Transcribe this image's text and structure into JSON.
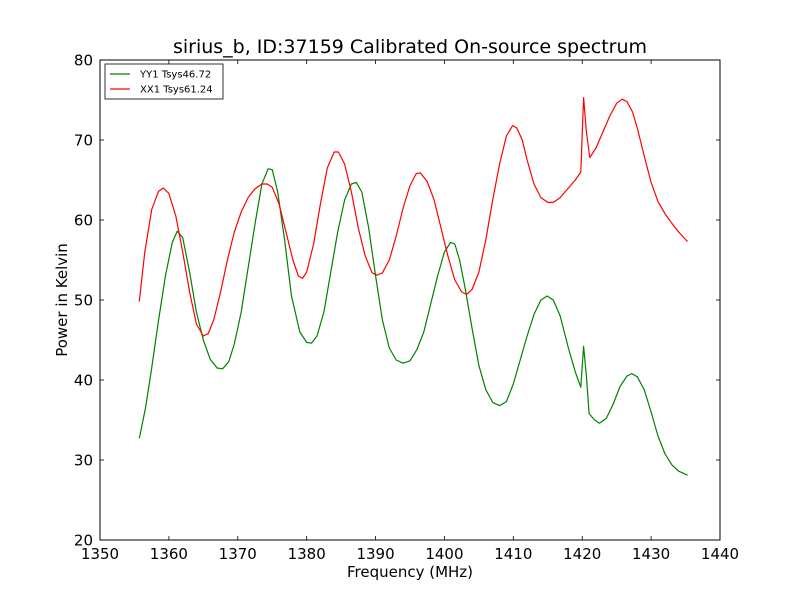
{
  "chart_data": {
    "type": "line",
    "title": "sirius_b, ID:37159 Calibrated On-source spectrum",
    "xlabel": "Frequency (MHz)",
    "ylabel": "Power in Kelvin",
    "xlim": [
      1350,
      1440
    ],
    "ylim": [
      20,
      80
    ],
    "xticks": [
      1350,
      1360,
      1370,
      1380,
      1390,
      1400,
      1410,
      1420,
      1430,
      1440
    ],
    "yticks": [
      20,
      30,
      40,
      50,
      60,
      70,
      80
    ],
    "grid": false,
    "legend_position": "top-left",
    "series": [
      {
        "name": "YY1 Tsys46.72",
        "color": "#008000",
        "points": [
          [
            1355.7,
            32.7
          ],
          [
            1356.6,
            36.5
          ],
          [
            1357.5,
            41.5
          ],
          [
            1358.5,
            47.5
          ],
          [
            1359.5,
            53.0
          ],
          [
            1360.5,
            57.2
          ],
          [
            1361.2,
            58.6
          ],
          [
            1362.0,
            57.8
          ],
          [
            1363.0,
            53.5
          ],
          [
            1364.0,
            48.5
          ],
          [
            1365.0,
            45.0
          ],
          [
            1366.0,
            42.6
          ],
          [
            1367.0,
            41.5
          ],
          [
            1367.8,
            41.4
          ],
          [
            1368.7,
            42.3
          ],
          [
            1369.5,
            44.5
          ],
          [
            1370.5,
            48.5
          ],
          [
            1371.5,
            54.0
          ],
          [
            1372.5,
            59.5
          ],
          [
            1373.5,
            64.5
          ],
          [
            1374.4,
            66.4
          ],
          [
            1375.0,
            66.3
          ],
          [
            1375.8,
            63.5
          ],
          [
            1376.8,
            57.5
          ],
          [
            1377.8,
            50.5
          ],
          [
            1379.0,
            46.0
          ],
          [
            1380.0,
            44.7
          ],
          [
            1380.7,
            44.6
          ],
          [
            1381.5,
            45.5
          ],
          [
            1382.5,
            48.5
          ],
          [
            1383.5,
            53.5
          ],
          [
            1384.5,
            58.5
          ],
          [
            1385.5,
            62.5
          ],
          [
            1386.5,
            64.5
          ],
          [
            1387.2,
            64.7
          ],
          [
            1388.0,
            63.5
          ],
          [
            1389.0,
            59.0
          ],
          [
            1390.0,
            53.0
          ],
          [
            1391.0,
            47.5
          ],
          [
            1392.0,
            44.0
          ],
          [
            1393.0,
            42.5
          ],
          [
            1394.0,
            42.1
          ],
          [
            1395.0,
            42.4
          ],
          [
            1396.0,
            43.8
          ],
          [
            1397.0,
            46.0
          ],
          [
            1398.0,
            49.5
          ],
          [
            1399.0,
            53.0
          ],
          [
            1400.0,
            56.0
          ],
          [
            1400.9,
            57.2
          ],
          [
            1401.5,
            57.0
          ],
          [
            1402.2,
            55.0
          ],
          [
            1403.0,
            51.5
          ],
          [
            1404.0,
            46.5
          ],
          [
            1405.0,
            41.8
          ],
          [
            1406.0,
            38.8
          ],
          [
            1407.0,
            37.2
          ],
          [
            1408.0,
            36.8
          ],
          [
            1409.0,
            37.3
          ],
          [
            1410.0,
            39.5
          ],
          [
            1411.0,
            42.5
          ],
          [
            1412.0,
            45.5
          ],
          [
            1413.0,
            48.2
          ],
          [
            1414.0,
            50.0
          ],
          [
            1414.9,
            50.5
          ],
          [
            1415.8,
            50.0
          ],
          [
            1416.8,
            48.0
          ],
          [
            1418.0,
            44.0
          ],
          [
            1419.0,
            41.0
          ],
          [
            1419.8,
            39.1
          ],
          [
            1420.2,
            44.2
          ],
          [
            1420.6,
            40.5
          ],
          [
            1421.0,
            35.8
          ],
          [
            1421.8,
            35.0
          ],
          [
            1422.5,
            34.6
          ],
          [
            1423.5,
            35.2
          ],
          [
            1424.5,
            37.0
          ],
          [
            1425.5,
            39.2
          ],
          [
            1426.5,
            40.5
          ],
          [
            1427.2,
            40.8
          ],
          [
            1428.0,
            40.4
          ],
          [
            1429.0,
            38.8
          ],
          [
            1430.0,
            36.0
          ],
          [
            1431.0,
            33.0
          ],
          [
            1432.0,
            30.8
          ],
          [
            1433.0,
            29.4
          ],
          [
            1434.0,
            28.6
          ],
          [
            1435.3,
            28.1
          ]
        ]
      },
      {
        "name": "XX1 Tsys61.24",
        "color": "#ff0000",
        "points": [
          [
            1355.7,
            49.8
          ],
          [
            1356.5,
            56.0
          ],
          [
            1357.5,
            61.3
          ],
          [
            1358.5,
            63.6
          ],
          [
            1359.2,
            64.0
          ],
          [
            1360.0,
            63.3
          ],
          [
            1361.0,
            60.5
          ],
          [
            1362.0,
            56.0
          ],
          [
            1363.0,
            51.0
          ],
          [
            1364.0,
            47.0
          ],
          [
            1365.0,
            45.5
          ],
          [
            1365.7,
            45.8
          ],
          [
            1366.5,
            47.5
          ],
          [
            1367.5,
            51.0
          ],
          [
            1368.5,
            55.0
          ],
          [
            1369.5,
            58.5
          ],
          [
            1370.5,
            61.0
          ],
          [
            1371.5,
            62.8
          ],
          [
            1372.5,
            63.9
          ],
          [
            1373.5,
            64.5
          ],
          [
            1374.3,
            64.5
          ],
          [
            1375.0,
            64.1
          ],
          [
            1376.0,
            62.0
          ],
          [
            1377.0,
            58.5
          ],
          [
            1378.0,
            55.0
          ],
          [
            1378.8,
            53.0
          ],
          [
            1379.4,
            52.7
          ],
          [
            1380.0,
            53.5
          ],
          [
            1381.0,
            57.0
          ],
          [
            1382.0,
            62.0
          ],
          [
            1383.0,
            66.5
          ],
          [
            1384.0,
            68.5
          ],
          [
            1384.6,
            68.5
          ],
          [
            1385.5,
            67.0
          ],
          [
            1386.5,
            63.5
          ],
          [
            1387.5,
            59.0
          ],
          [
            1388.5,
            55.5
          ],
          [
            1389.5,
            53.4
          ],
          [
            1390.2,
            53.1
          ],
          [
            1391.0,
            53.4
          ],
          [
            1392.0,
            55.0
          ],
          [
            1393.0,
            58.0
          ],
          [
            1394.0,
            61.5
          ],
          [
            1395.0,
            64.3
          ],
          [
            1395.9,
            65.8
          ],
          [
            1396.5,
            65.9
          ],
          [
            1397.5,
            64.8
          ],
          [
            1398.5,
            62.5
          ],
          [
            1399.5,
            59.0
          ],
          [
            1400.5,
            55.5
          ],
          [
            1401.5,
            52.5
          ],
          [
            1402.5,
            51.0
          ],
          [
            1403.2,
            50.7
          ],
          [
            1404.0,
            51.3
          ],
          [
            1405.0,
            53.5
          ],
          [
            1406.0,
            57.5
          ],
          [
            1407.0,
            62.5
          ],
          [
            1408.0,
            67.0
          ],
          [
            1409.0,
            70.5
          ],
          [
            1409.9,
            71.8
          ],
          [
            1410.5,
            71.5
          ],
          [
            1411.3,
            70.0
          ],
          [
            1412.0,
            67.5
          ],
          [
            1413.0,
            64.5
          ],
          [
            1414.0,
            62.8
          ],
          [
            1415.0,
            62.2
          ],
          [
            1415.8,
            62.2
          ],
          [
            1416.8,
            62.8
          ],
          [
            1418.0,
            64.0
          ],
          [
            1419.0,
            65.0
          ],
          [
            1419.8,
            66.0
          ],
          [
            1420.2,
            75.3
          ],
          [
            1420.6,
            71.0
          ],
          [
            1421.1,
            67.8
          ],
          [
            1422.0,
            69.0
          ],
          [
            1423.0,
            71.0
          ],
          [
            1424.0,
            73.0
          ],
          [
            1425.0,
            74.6
          ],
          [
            1425.8,
            75.1
          ],
          [
            1426.5,
            74.8
          ],
          [
            1427.3,
            73.5
          ],
          [
            1428.0,
            71.5
          ],
          [
            1429.0,
            68.0
          ],
          [
            1430.0,
            64.7
          ],
          [
            1431.0,
            62.3
          ],
          [
            1432.0,
            60.8
          ],
          [
            1433.0,
            59.6
          ],
          [
            1434.0,
            58.5
          ],
          [
            1435.3,
            57.3
          ]
        ]
      }
    ]
  }
}
